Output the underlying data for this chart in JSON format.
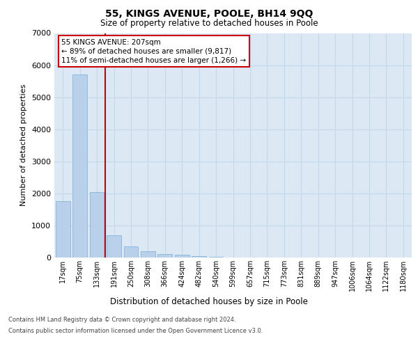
{
  "title": "55, KINGS AVENUE, POOLE, BH14 9QQ",
  "subtitle": "Size of property relative to detached houses in Poole",
  "xlabel": "Distribution of detached houses by size in Poole",
  "ylabel": "Number of detached properties",
  "categories": [
    "17sqm",
    "75sqm",
    "133sqm",
    "191sqm",
    "250sqm",
    "308sqm",
    "366sqm",
    "424sqm",
    "482sqm",
    "540sqm",
    "599sqm",
    "657sqm",
    "715sqm",
    "773sqm",
    "831sqm",
    "889sqm",
    "947sqm",
    "1006sqm",
    "1064sqm",
    "1122sqm",
    "1180sqm"
  ],
  "values": [
    1750,
    5700,
    2050,
    700,
    350,
    200,
    100,
    80,
    50,
    30,
    0,
    0,
    0,
    0,
    0,
    0,
    0,
    0,
    0,
    0,
    0
  ],
  "bar_color": "#b8d0ea",
  "bar_edgecolor": "#7aaed4",
  "vline_color": "#cc0000",
  "vline_pos": 2.5,
  "ylim_max": 7000,
  "yticks": [
    0,
    1000,
    2000,
    3000,
    4000,
    5000,
    6000,
    7000
  ],
  "grid_color": "#c5d8ea",
  "bg_color": "#dce8f4",
  "annotation_line1": "55 KINGS AVENUE: 207sqm",
  "annotation_line2": "← 89% of detached houses are smaller (9,817)",
  "annotation_line3": "11% of semi-detached houses are larger (1,266) →",
  "ann_box_edgecolor": "#cc0000",
  "footer_line1": "Contains HM Land Registry data © Crown copyright and database right 2024.",
  "footer_line2": "Contains public sector information licensed under the Open Government Licence v3.0."
}
